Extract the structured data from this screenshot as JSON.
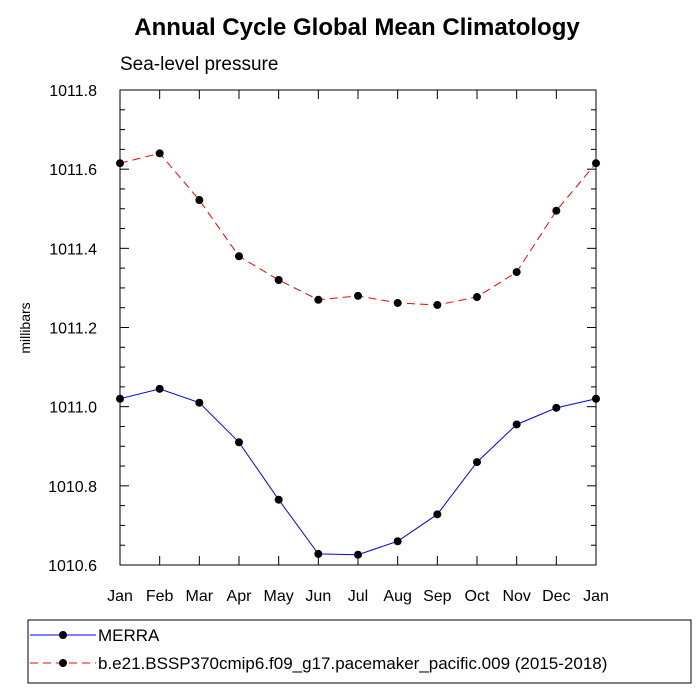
{
  "chart_data": {
    "type": "line",
    "title": "Annual Cycle Global Mean Climatology",
    "subtitle": "Sea-level pressure",
    "ylabel": "millibars",
    "xlabel": "",
    "ylim": [
      1010.6,
      1011.8
    ],
    "yticks": [
      "1010.6",
      "1010.8",
      "1011.0",
      "1011.2",
      "1011.4",
      "1011.6",
      "1011.8"
    ],
    "categories": [
      "Jan",
      "Feb",
      "Mar",
      "Apr",
      "May",
      "Jun",
      "Jul",
      "Aug",
      "Sep",
      "Oct",
      "Nov",
      "Dec",
      "Jan"
    ],
    "grid": false,
    "legend_placement": "bottom",
    "series": [
      {
        "name": "MERRA",
        "color": "#0000ff",
        "line_style": "solid",
        "marker": "filled-circle",
        "values": [
          1011.02,
          1011.045,
          1011.01,
          1010.91,
          1010.765,
          1010.628,
          1010.626,
          1010.66,
          1010.728,
          1010.86,
          1010.955,
          1010.997,
          1011.02
        ]
      },
      {
        "name": "b.e21.BSSP370cmip6.f09_g17.pacemaker_pacific.009 (2015-2018)",
        "color": "#ff0000",
        "line_style": "dashed",
        "marker": "filled-circle",
        "values": [
          1011.615,
          1011.64,
          1011.522,
          1011.38,
          1011.32,
          1011.27,
          1011.28,
          1011.262,
          1011.257,
          1011.277,
          1011.34,
          1011.495,
          1011.615
        ]
      }
    ]
  }
}
